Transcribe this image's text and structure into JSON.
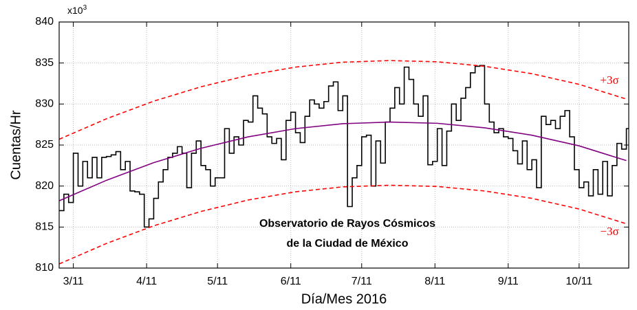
{
  "chart_data": {
    "type": "line",
    "xlabel": "Día/Mes 2016",
    "ylabel": "Cuentas/Hr",
    "y_multiplier": {
      "base": "x10",
      "exponent": "3"
    },
    "annotations": {
      "plus": "+3σ",
      "minus": "−3σ",
      "title_line1": "Observatorio de Rayos Cósmicos",
      "title_line2": "de la Ciudad de México"
    },
    "xlim": [
      65,
      306
    ],
    "ylim": [
      810,
      840
    ],
    "yticks": [
      810,
      815,
      820,
      825,
      830,
      835,
      840
    ],
    "xticks": [
      {
        "value": 71,
        "label": "3/11"
      },
      {
        "value": 102,
        "label": "4/11"
      },
      {
        "value": 132,
        "label": "5/11"
      },
      {
        "value": 163,
        "label": "6/11"
      },
      {
        "value": 193,
        "label": "7/11"
      },
      {
        "value": 224,
        "label": "8/11"
      },
      {
        "value": 255,
        "label": "9/11"
      },
      {
        "value": 285,
        "label": "10/11"
      }
    ],
    "grid": true,
    "series": [
      {
        "name": "counts",
        "color": "#000000",
        "step": true,
        "x": [
          65,
          67,
          69,
          71,
          73,
          75,
          77,
          79,
          81,
          83,
          85,
          87,
          89,
          91,
          93,
          95,
          97,
          99,
          101,
          103,
          105,
          107,
          109,
          111,
          113,
          115,
          117,
          119,
          121,
          123,
          125,
          127,
          129,
          131,
          133,
          135,
          137,
          139,
          141,
          143,
          145,
          147,
          149,
          151,
          153,
          155,
          157,
          159,
          161,
          163,
          165,
          167,
          169,
          171,
          173,
          175,
          177,
          179,
          181,
          183,
          185,
          187,
          189,
          191,
          193,
          195,
          197,
          199,
          201,
          203,
          205,
          207,
          209,
          211,
          213,
          215,
          217,
          219,
          221,
          223,
          225,
          227,
          229,
          231,
          233,
          235,
          237,
          239,
          241,
          243,
          245,
          247,
          249,
          251,
          253,
          255,
          257,
          259,
          261,
          263,
          265,
          267,
          269,
          271,
          273,
          275,
          277,
          279,
          281,
          283,
          285,
          287,
          289,
          291,
          293,
          295,
          297,
          299,
          301,
          303,
          305
        ],
        "values": [
          817,
          819,
          818,
          824,
          820,
          823,
          821,
          823.5,
          821,
          823.5,
          823.6,
          823.8,
          824.2,
          822,
          823,
          819.4,
          819.3,
          819,
          815,
          816,
          818.5,
          820.5,
          822,
          823.5,
          824,
          824.8,
          824,
          819.8,
          824,
          825.5,
          822.5,
          822,
          820,
          821,
          821,
          827,
          824,
          826,
          825,
          828,
          827.8,
          831,
          829.5,
          828.8,
          826,
          825.2,
          825.8,
          823.2,
          828,
          829,
          826.5,
          825.3,
          828.5,
          830.5,
          830,
          829.5,
          830.3,
          832.2,
          832.7,
          829.2,
          831,
          817.5,
          821,
          822.5,
          826,
          826.2,
          820,
          825.5,
          822.8,
          827.8,
          829.5,
          832,
          830,
          834.5,
          833,
          830,
          828.5,
          831,
          822.6,
          823,
          827,
          822.5,
          826.7,
          830,
          828,
          830.7,
          832,
          833.8,
          834.6,
          834.7,
          830,
          827.8,
          826.5,
          827,
          826,
          825.8,
          824.3,
          822.7,
          825.5,
          822,
          823.2,
          819.8,
          828.5,
          827.5,
          828,
          827,
          828.5,
          829.2,
          826,
          822,
          819.8,
          820.5,
          818.8,
          822,
          819,
          823,
          818.8,
          822.5,
          825.2,
          824.5,
          827
        ]
      },
      {
        "name": "fit",
        "color": "#800080",
        "x": [
          65,
          85,
          105,
          125,
          145,
          165,
          185,
          205,
          225,
          245,
          265,
          285,
          305
        ],
        "values": [
          818.2,
          820.7,
          822.85,
          824.6,
          826.0,
          827.0,
          827.6,
          827.8,
          827.65,
          827.1,
          826.2,
          824.9,
          823.1
        ]
      },
      {
        "name": "plus3sigma",
        "color": "#ff0000",
        "dashed": true,
        "x": [
          65,
          85,
          105,
          125,
          145,
          165,
          185,
          205,
          225,
          245,
          265,
          285,
          305
        ],
        "values": [
          825.7,
          828.2,
          830.35,
          832.1,
          833.5,
          834.5,
          835.1,
          835.3,
          835.15,
          834.6,
          833.7,
          832.4,
          830.6
        ]
      },
      {
        "name": "minus3sigma",
        "color": "#ff0000",
        "dashed": true,
        "x": [
          65,
          85,
          105,
          125,
          145,
          165,
          185,
          205,
          225,
          245,
          265,
          285,
          305
        ],
        "values": [
          810.5,
          813.0,
          815.15,
          816.9,
          818.3,
          819.3,
          819.9,
          820.1,
          819.95,
          819.4,
          818.5,
          817.2,
          815.4
        ]
      }
    ]
  }
}
